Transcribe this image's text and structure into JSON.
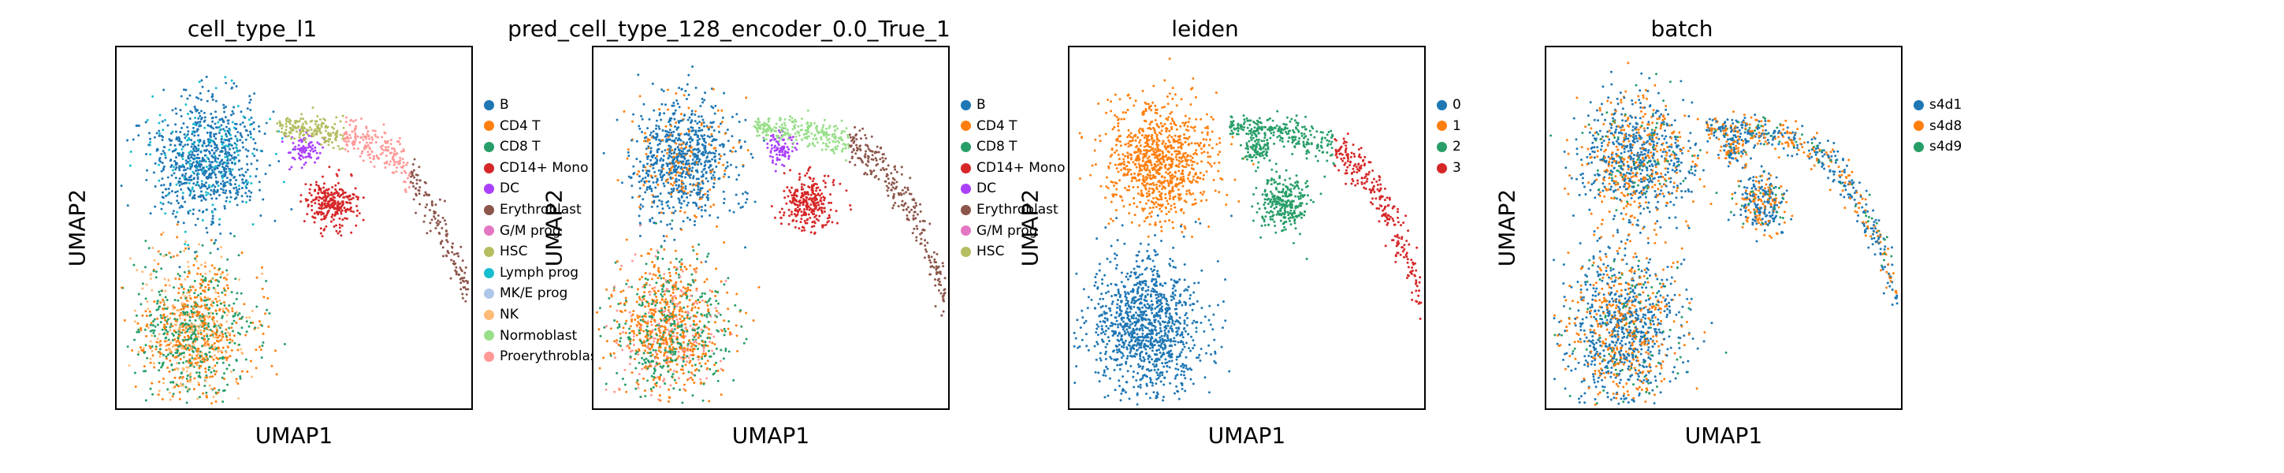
{
  "chart_data": [
    {
      "type": "scatter",
      "title": "cell_type_l1",
      "xlabel": "UMAP1",
      "ylabel": "UMAP2",
      "series": [
        {
          "name": "B",
          "color": "#1f77b4"
        },
        {
          "name": "CD4 T",
          "color": "#ff7f0e"
        },
        {
          "name": "CD8 T",
          "color": "#279e68"
        },
        {
          "name": "CD14+ Mono",
          "color": "#d62728"
        },
        {
          "name": "DC",
          "color": "#aa40fc"
        },
        {
          "name": "Erythroblast",
          "color": "#8c564b"
        },
        {
          "name": "G/M prog",
          "color": "#e377c2"
        },
        {
          "name": "HSC",
          "color": "#b5bd61"
        },
        {
          "name": "Lymph prog",
          "color": "#17becf"
        },
        {
          "name": "MK/E prog",
          "color": "#aec7e8"
        },
        {
          "name": "NK",
          "color": "#ffbb78"
        },
        {
          "name": "Normoblast",
          "color": "#98df8a"
        },
        {
          "name": "Proerythroblast",
          "color": "#ff9896"
        }
      ]
    },
    {
      "type": "scatter",
      "title": "pred_cell_type_128_encoder_0.0_True_1",
      "xlabel": "UMAP1",
      "ylabel": "UMAP2",
      "series": [
        {
          "name": "B",
          "color": "#1f77b4"
        },
        {
          "name": "CD4 T",
          "color": "#ff7f0e"
        },
        {
          "name": "CD8 T",
          "color": "#279e68"
        },
        {
          "name": "CD14+ Mono",
          "color": "#d62728"
        },
        {
          "name": "DC",
          "color": "#aa40fc"
        },
        {
          "name": "Erythroblast",
          "color": "#8c564b"
        },
        {
          "name": "G/M prog",
          "color": "#e377c2"
        },
        {
          "name": "HSC",
          "color": "#b5bd61"
        }
      ]
    },
    {
      "type": "scatter",
      "title": "leiden",
      "xlabel": "UMAP1",
      "ylabel": "UMAP2",
      "series": [
        {
          "name": "0",
          "color": "#1f77b4"
        },
        {
          "name": "1",
          "color": "#ff7f0e"
        },
        {
          "name": "2",
          "color": "#279e68"
        },
        {
          "name": "3",
          "color": "#d62728"
        }
      ]
    },
    {
      "type": "scatter",
      "title": "batch",
      "xlabel": "UMAP1",
      "ylabel": "UMAP2",
      "series": [
        {
          "name": "s4d1",
          "color": "#1f77b4"
        },
        {
          "name": "s4d8",
          "color": "#ff7f0e"
        },
        {
          "name": "s4d9",
          "color": "#279e68"
        }
      ]
    }
  ]
}
